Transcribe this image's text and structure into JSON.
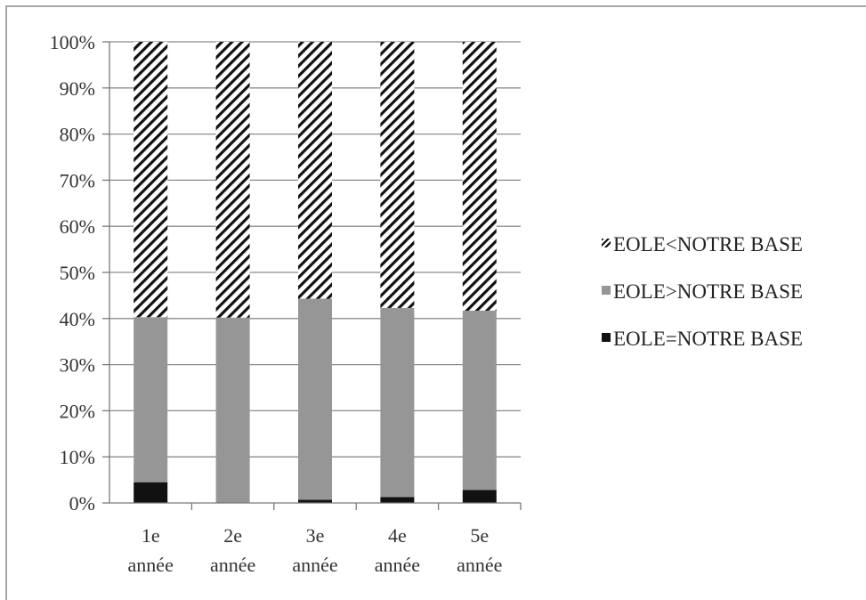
{
  "chart_data": {
    "type": "bar",
    "stacked": true,
    "categories": [
      "1e\nannée",
      "2e\nannée",
      "3e\nannée",
      "4e\nannée",
      "5e\nannée"
    ],
    "series": [
      {
        "name": "EOLE=NOTRE BASE",
        "values": [
          4.5,
          0,
          0.7,
          1.3,
          2.8
        ],
        "color": "#111111",
        "fill": "solid"
      },
      {
        "name": "EOLE>NOTRE BASE",
        "values": [
          35.8,
          40.2,
          43.6,
          41.0,
          38.9
        ],
        "color": "#969696",
        "fill": "solid"
      },
      {
        "name": "EOLE<NOTRE BASE",
        "values": [
          59.7,
          59.8,
          55.7,
          57.7,
          58.3
        ],
        "color": "#111111",
        "fill": "hatch"
      }
    ],
    "yticks": [
      "0%",
      "10%",
      "20%",
      "30%",
      "40%",
      "50%",
      "60%",
      "70%",
      "80%",
      "90%",
      "100%"
    ],
    "ylim": [
      0,
      100
    ],
    "grid": true,
    "legend_position": "right",
    "legend_order": [
      "EOLE<NOTRE BASE",
      "EOLE>NOTRE BASE",
      "EOLE=NOTRE BASE"
    ]
  }
}
